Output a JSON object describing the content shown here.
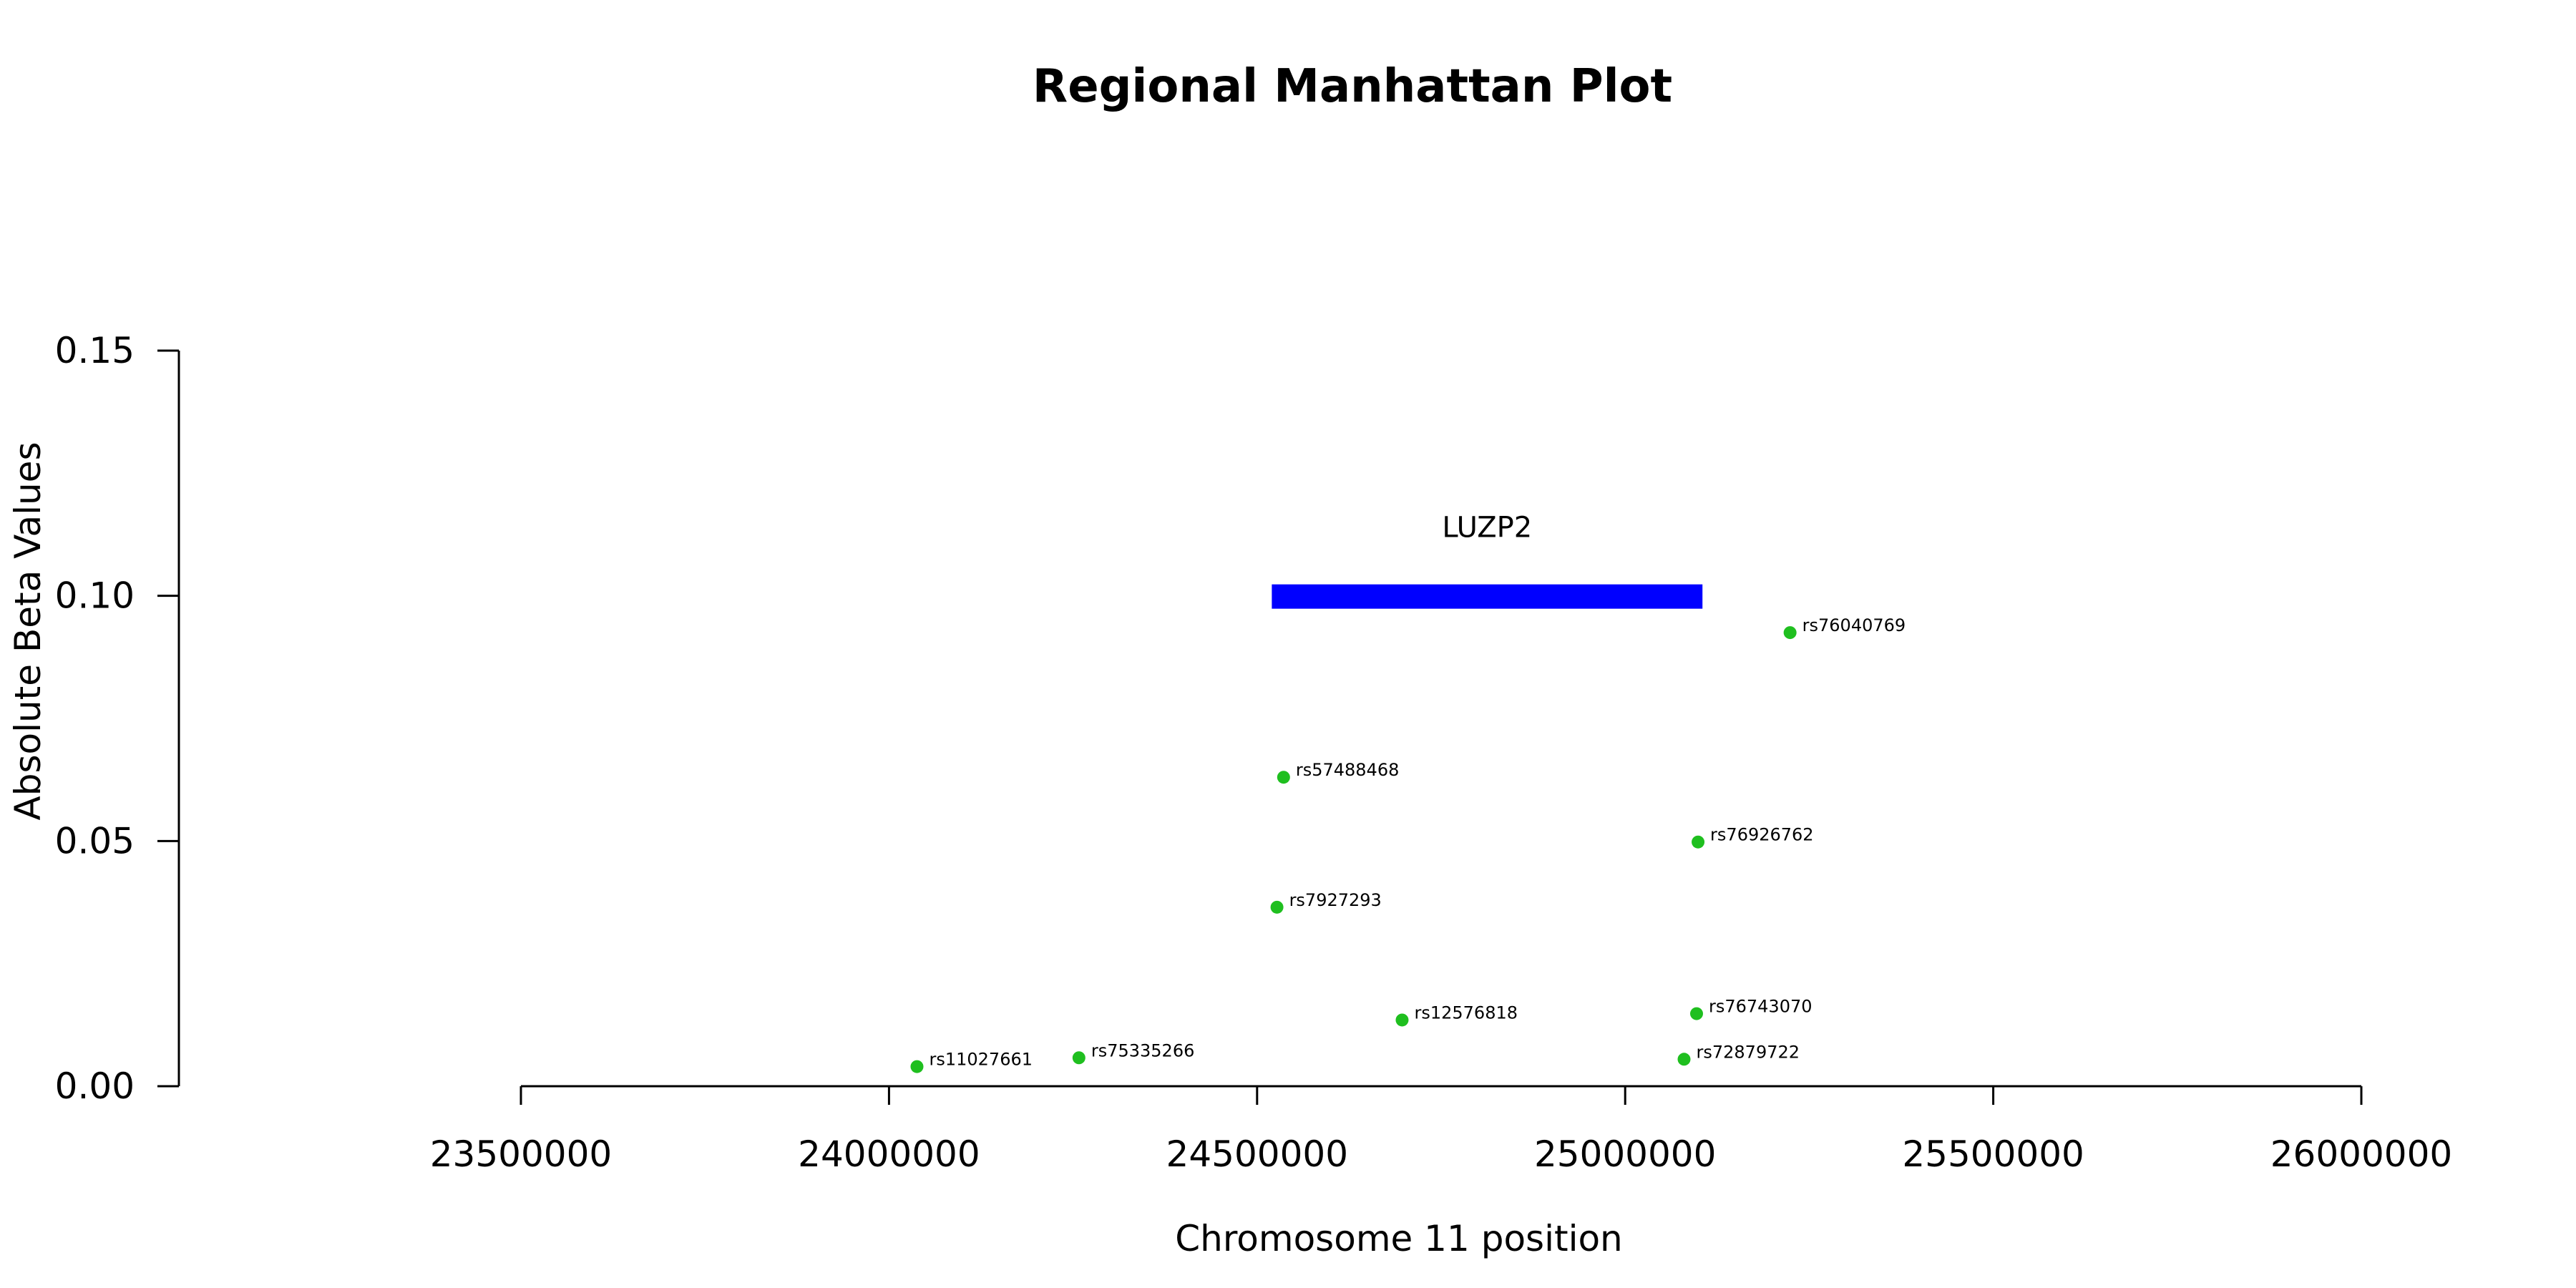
{
  "chart_data": {
    "type": "scatter",
    "title": "Regional Manhattan Plot",
    "xlabel": "Chromosome 11 position",
    "ylabel": "Absolute Beta Values",
    "xlim": [
      23500000,
      26000000
    ],
    "ylim": [
      0,
      0.15
    ],
    "x_ticks": [
      23500000,
      24000000,
      24500000,
      25000000,
      25500000,
      26000000
    ],
    "x_tick_labels": [
      "23500000",
      "24000000",
      "24500000",
      "25000000",
      "25500000",
      "26000000"
    ],
    "y_ticks": [
      0,
      0.05,
      0.1,
      0.15
    ],
    "y_tick_labels": [
      "0.00",
      "0.05",
      "0.10",
      "0.15"
    ],
    "grid": false,
    "point_color": "#1fbf1f",
    "gene": {
      "name": "LUZP2",
      "start": 24520000,
      "end": 25105000,
      "y": 0.1,
      "color": "#0000ff"
    },
    "points": [
      {
        "label": "rs11027661",
        "x": 24038000,
        "y": 0.004
      },
      {
        "label": "rs75335266",
        "x": 24258000,
        "y": 0.0058
      },
      {
        "label": "rs7927293",
        "x": 24527000,
        "y": 0.0365
      },
      {
        "label": "rs57488468",
        "x": 24536000,
        "y": 0.063
      },
      {
        "label": "rs12576818",
        "x": 24697000,
        "y": 0.0135
      },
      {
        "label": "rs72879722",
        "x": 25080000,
        "y": 0.0055
      },
      {
        "label": "rs76743070",
        "x": 25097000,
        "y": 0.0148
      },
      {
        "label": "rs76926762",
        "x": 25099000,
        "y": 0.0498
      },
      {
        "label": "rs76040769",
        "x": 25224000,
        "y": 0.0925
      }
    ]
  }
}
